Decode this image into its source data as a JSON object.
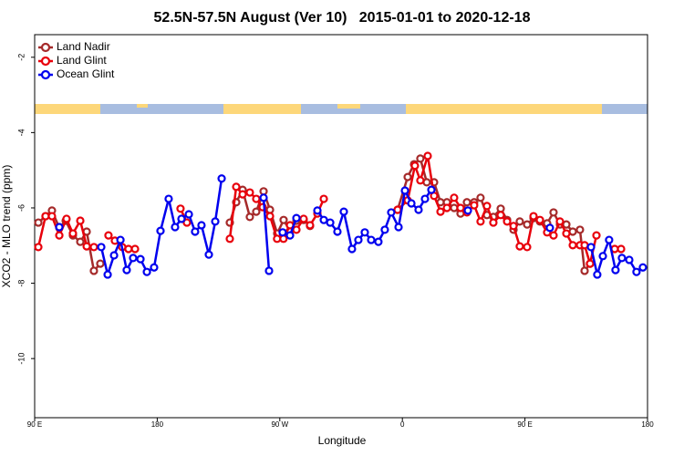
{
  "chart_data": {
    "type": "line",
    "title": "52.5N-57.5N August (Ver 10)   2015-01-01 to 2020-12-18",
    "x_label": "Longitude",
    "y_label": "XCO2 - MLO trend (ppm)",
    "xlim": [
      90,
      540
    ],
    "ylim": [
      -11.57,
      -1.4
    ],
    "xticks": [
      {
        "value": 90,
        "label": "90 E"
      },
      180,
      {
        "value": 270,
        "label": "90 W"
      },
      {
        "value": 360,
        "label": "0"
      },
      {
        "value": 450,
        "label": "90 E"
      },
      {
        "value": 540,
        "label": "180"
      }
    ],
    "yticks": [
      -2,
      -4,
      -6,
      -8,
      -10
    ],
    "legend": "top-left",
    "series": [
      {
        "name": "Land Nadir",
        "color": "#a52a2a",
        "x": [
          92.7,
          98.0,
          102.7,
          108.1,
          112.8,
          118.1,
          123.5,
          128.2,
          133.5,
          138.2,
          null,
          233.3,
          238.0,
          242.7,
          248.0,
          252.7,
          258.1,
          262.8,
          268.1,
          272.8,
          277.5,
          282.2,
          287.5,
          292.2,
          null,
          356.5,
          363.9,
          368.6,
          373.2,
          377.9,
          383.3,
          388.0,
          392.7,
          398.0,
          402.7,
          407.4,
          412.7,
          417.4,
          422.1,
          426.8,
          432.2,
          436.9,
          441.6,
          446.2,
          451.6,
          456.3,
          461.0,
          466.3,
          471.0,
          475.7,
          480.4,
          485.1,
          490.4,
          493.8,
          497.8
        ],
        "values": [
          -6.39,
          -6.22,
          -6.07,
          -6.53,
          -6.34,
          -6.73,
          -6.9,
          -6.63,
          -7.67,
          -7.48,
          null,
          -6.39,
          -5.85,
          -5.52,
          -6.24,
          -6.1,
          -5.56,
          -6.05,
          -6.68,
          -6.32,
          -6.61,
          -6.34,
          -6.32,
          -6.48,
          null,
          -6.05,
          -5.18,
          -4.84,
          -4.69,
          -5.32,
          -5.32,
          -5.85,
          -5.85,
          -6.0,
          -6.15,
          -5.85,
          -5.85,
          -5.73,
          -6.19,
          -6.24,
          -6.02,
          -6.32,
          -6.58,
          -6.36,
          -6.44,
          -6.27,
          -6.36,
          -6.41,
          -6.12,
          -6.44,
          -6.44,
          -6.63,
          -6.58,
          -7.67,
          -7.48
        ]
      },
      {
        "name": "Land Glint",
        "color": "#e8000b",
        "x": [
          92.7,
          98.0,
          102.7,
          108.1,
          113.4,
          118.1,
          123.5,
          128.2,
          133.5,
          null,
          144.2,
          148.9,
          154.3,
          158.9,
          163.7,
          null,
          197.1,
          201.8,
          null,
          233.3,
          238.0,
          242.7,
          248.0,
          252.7,
          257.4,
          262.8,
          268.0,
          272.7,
          277.5,
          282.2,
          287.5,
          292.2,
          297.6,
          302.3,
          null,
          356.5,
          363.9,
          369.2,
          373.2,
          378.6,
          383.3,
          388.0,
          392.7,
          398.0,
          402.7,
          407.4,
          412.7,
          417.4,
          422.1,
          426.8,
          432.2,
          436.9,
          441.6,
          446.2,
          451.6,
          456.3,
          461.0,
          466.3,
          471.0,
          475.7,
          480.4,
          485.1,
          490.4,
          493.8,
          497.8,
          502.5,
          null,
          515.9,
          520.6
        ],
        "values": [
          -7.04,
          -6.22,
          -6.22,
          -6.73,
          -6.29,
          -6.68,
          -6.34,
          -7.02,
          -7.04,
          null,
          -6.73,
          -6.87,
          -7.04,
          -7.09,
          -7.09,
          null,
          -6.02,
          -6.39,
          null,
          -6.82,
          -5.44,
          -5.64,
          -5.59,
          -5.76,
          -5.98,
          -6.22,
          -6.82,
          -6.82,
          -6.46,
          -6.58,
          -6.29,
          -6.46,
          -6.15,
          -5.76,
          null,
          -6.05,
          -5.8,
          -4.88,
          -5.27,
          -4.62,
          -5.68,
          -6.1,
          -6.0,
          -5.73,
          -6.0,
          -6.12,
          -5.93,
          -6.36,
          -5.95,
          -6.39,
          -6.19,
          -6.36,
          -6.48,
          -7.02,
          -7.04,
          -6.22,
          -6.32,
          -6.65,
          -6.73,
          -6.36,
          -6.68,
          -6.99,
          -6.99,
          -6.99,
          -7.48,
          -6.73,
          null,
          -7.09,
          -7.09
        ]
      },
      {
        "name": "Ocean Glint",
        "color": "#0000ee",
        "x": [
          108.1,
          null,
          138.9,
          143.6,
          148.3,
          153.0,
          157.6,
          162.3,
          167.7,
          172.4,
          177.7,
          182.4,
          188.4,
          193.1,
          197.8,
          203.2,
          207.8,
          212.5,
          217.9,
          222.6,
          227.3,
          null,
          258.1,
          262.1,
          null,
          272.1,
          277.5,
          282.2,
          null,
          297.6,
          302.3,
          307.0,
          312.3,
          317.0,
          323.0,
          327.7,
          332.4,
          337.1,
          342.4,
          347.1,
          351.8,
          357.2,
          361.9,
          366.6,
          371.9,
          376.6,
          381.3,
          null,
          408.1,
          null,
          468.3,
          null,
          498.5,
          503.1,
          507.2,
          511.8,
          516.5,
          521.2,
          526.6,
          531.9,
          536.6
        ],
        "values": [
          -6.51,
          null,
          -7.04,
          -7.77,
          -7.26,
          -6.85,
          -7.65,
          -7.33,
          -7.36,
          -7.7,
          -7.58,
          -6.61,
          -5.76,
          -6.51,
          -6.29,
          -6.17,
          -6.63,
          -6.46,
          -7.24,
          -6.36,
          -5.22,
          null,
          -5.73,
          -7.67,
          null,
          -6.65,
          -6.73,
          -6.27,
          null,
          -6.07,
          -6.32,
          -6.39,
          -6.63,
          -6.1,
          -7.09,
          -6.85,
          -6.65,
          -6.85,
          -6.9,
          -6.58,
          -6.12,
          -6.51,
          -5.54,
          -5.88,
          -6.05,
          -5.76,
          -5.52,
          null,
          -6.07,
          null,
          -6.53,
          null,
          -7.04,
          -7.77,
          -7.28,
          -6.85,
          -7.65,
          -7.33,
          -7.38,
          -7.7,
          -7.58
        ]
      }
    ]
  }
}
